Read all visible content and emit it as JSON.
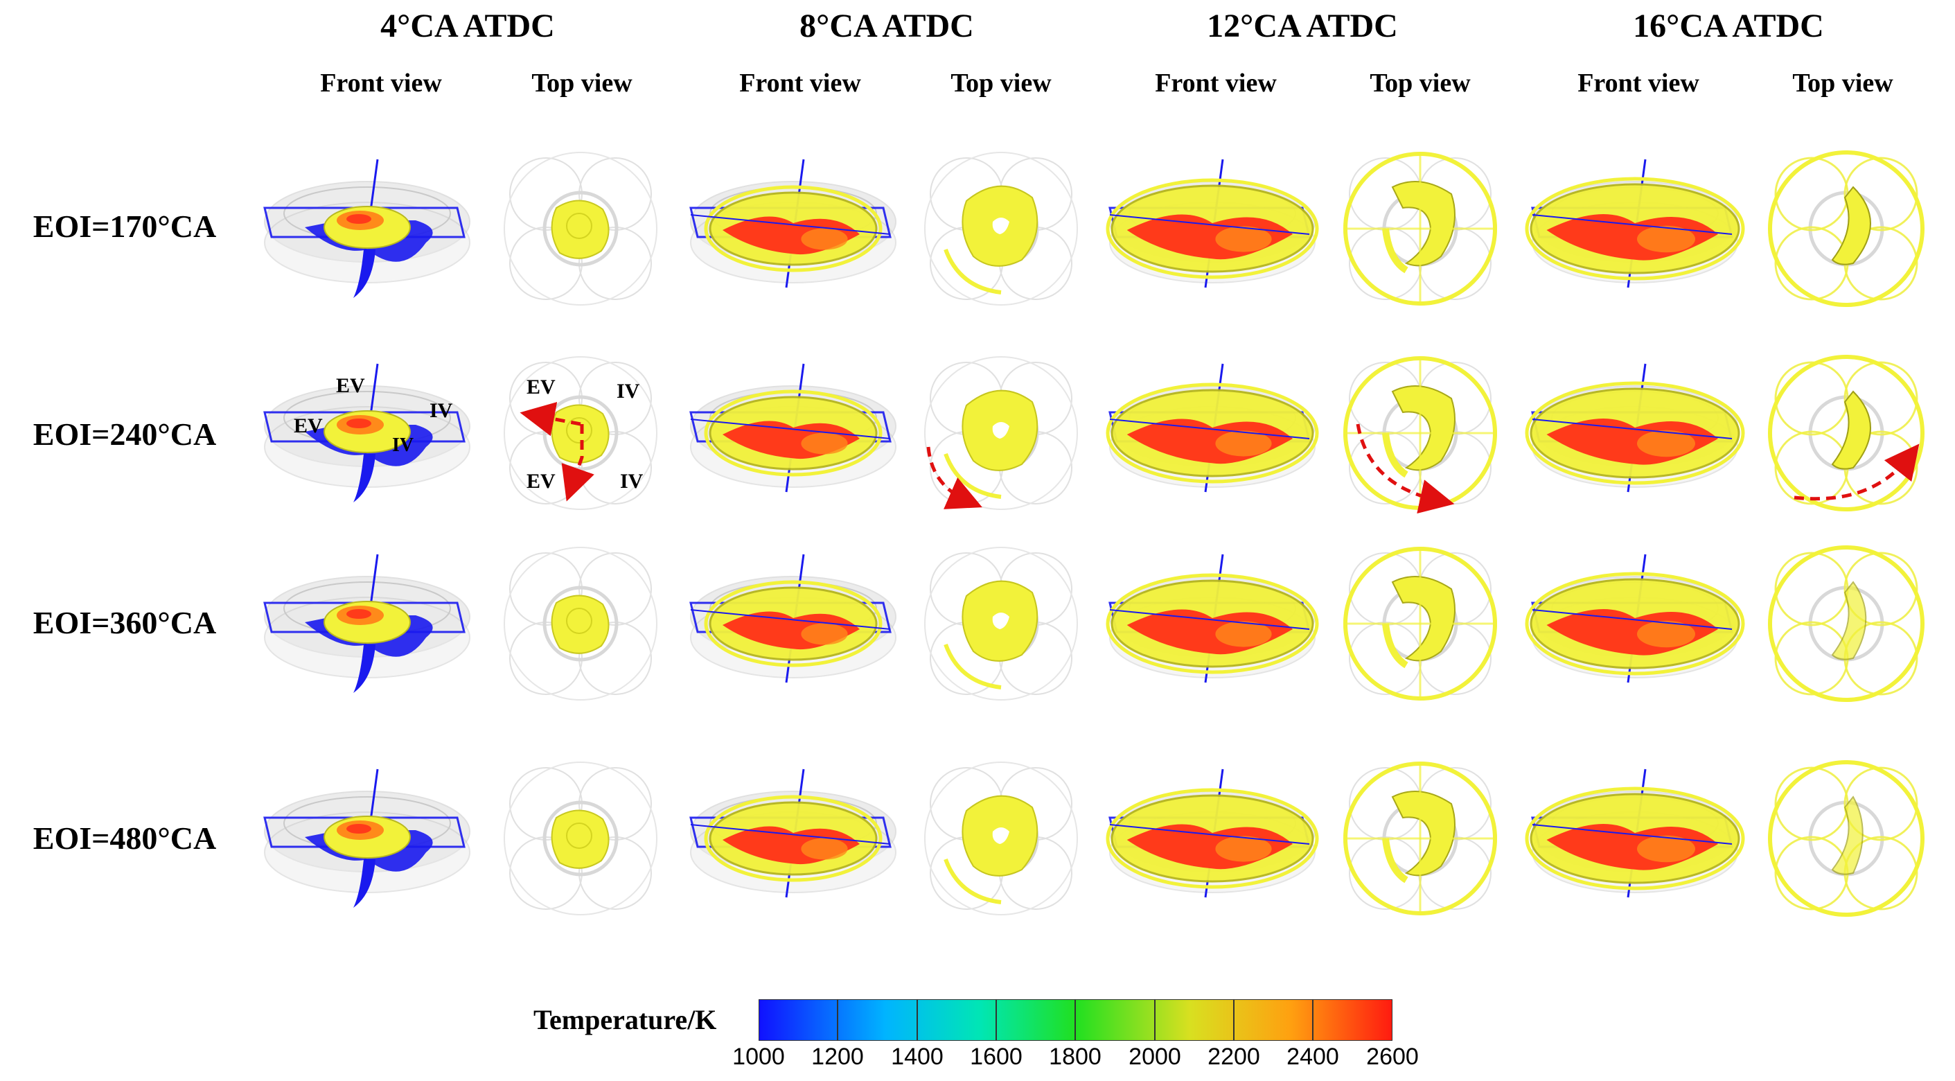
{
  "crank_angles": [
    "4°CA ATDC",
    "8°CA ATDC",
    "12°CA ATDC",
    "16°CA ATDC"
  ],
  "views": [
    "Front view",
    "Top view"
  ],
  "eoi_rows": [
    "EOI=170°CA",
    "EOI=240°CA",
    "EOI=360°CA",
    "EOI=480°CA"
  ],
  "valve_labels": [
    "EV",
    "IV",
    "EV",
    "IV",
    "EV",
    "IV",
    "EV",
    "IV"
  ],
  "legend": {
    "title": "Temperature/K",
    "ticks": [
      "1000",
      "1200",
      "1400",
      "1600",
      "1800",
      "2000",
      "2200",
      "2400",
      "2600"
    ],
    "colors": [
      "#1010ff",
      "#00c8ff",
      "#00e080",
      "#20e020",
      "#d0e020",
      "#f0b000",
      "#ff3020"
    ]
  },
  "colors": {
    "flame_yellow": "#f2f23a",
    "flame_red": "#ff3a1a",
    "flame_orange": "#ff8a1a",
    "plane_blue": "#1a1aee",
    "chamber_grey": "#d6d6d6",
    "arrow_red": "#e01010"
  }
}
